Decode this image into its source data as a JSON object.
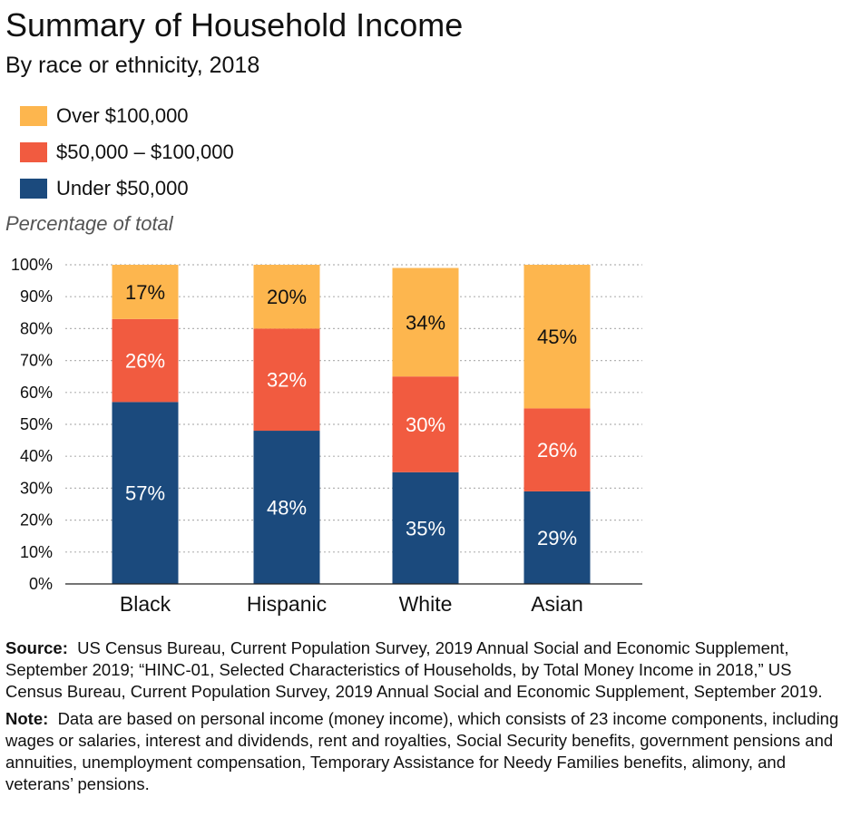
{
  "title": "Summary of Household Income",
  "subtitle": "By race or ethnicity, 2018",
  "ylabel": "Percentage of total",
  "colors": {
    "over_100k": "#FDB64E",
    "mid": "#F15B40",
    "under_50k": "#1B4A7D",
    "grid": "#b3b3b3"
  },
  "legend": [
    {
      "label": "Over $100,000",
      "color": "#FDB64E"
    },
    {
      "label": "$50,000 – $100,000",
      "color": "#F15B40"
    },
    {
      "label": "Under $50,000",
      "color": "#1B4A7D"
    }
  ],
  "chart_data": {
    "type": "bar",
    "stacked": true,
    "categories": [
      "Black",
      "Hispanic",
      "White",
      "Asian"
    ],
    "series": [
      {
        "name": "Under $50,000",
        "values": [
          57,
          48,
          35,
          29
        ],
        "labels": [
          "57%",
          "48%",
          "35%",
          "29%"
        ],
        "color": "#1B4A7D",
        "label_color": "#ffffff"
      },
      {
        "name": "$50,000 – $100,000",
        "values": [
          26,
          32,
          30,
          26
        ],
        "labels": [
          "26%",
          "32%",
          "30%",
          "26%"
        ],
        "color": "#F15B40",
        "label_color": "#ffffff"
      },
      {
        "name": "Over $100,000",
        "values": [
          17,
          20,
          34,
          45
        ],
        "labels": [
          "17%",
          "20%",
          "34%",
          "45%"
        ],
        "color": "#FDB64E",
        "label_color": "#111111"
      }
    ],
    "ylabel": "Percentage of total",
    "ylim": [
      0,
      100
    ],
    "yticks": [
      "0%",
      "10%",
      "20%",
      "30%",
      "40%",
      "50%",
      "60%",
      "70%",
      "80%",
      "90%",
      "100%"
    ],
    "grid": true,
    "legend_position": "top-left"
  },
  "notes": {
    "source_label": "Source:",
    "source_text": "US Census Bureau, Current Population Survey, 2019 Annual Social and Economic Supplement, September 2019; “HINC-01, Selected Characteristics of Households, by Total Money Income in 2018,” US Census Bureau, Current Population Survey, 2019 Annual Social and Economic Supplement, September 2019.",
    "note_label": "Note:",
    "note_text": "Data are based on personal income (money income), which consists of 23 income components, including wages or salaries, interest and dividends, rent and royalties, Social Security benefits, government pensions and annuities, unemployment compensation, Temporary Assistance for Needy Families benefits, alimony, and veterans’ pensions."
  }
}
